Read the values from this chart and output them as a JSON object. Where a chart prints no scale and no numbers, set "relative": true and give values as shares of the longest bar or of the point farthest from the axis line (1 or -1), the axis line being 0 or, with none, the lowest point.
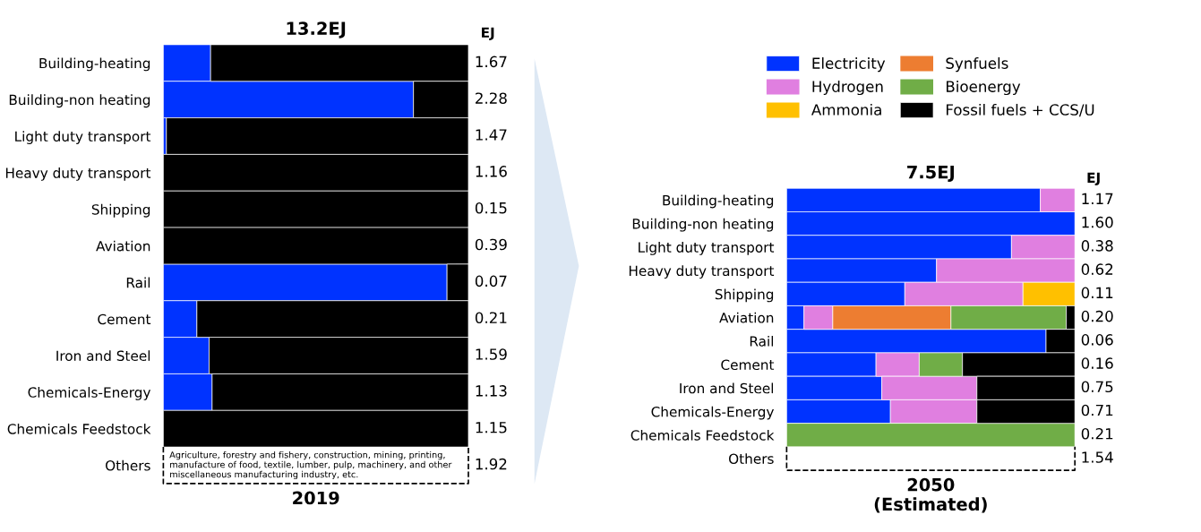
{
  "chart_data": [
    {
      "type": "bar",
      "orientation": "horizontal",
      "stacked": true,
      "relative": true,
      "tick_labels": "y",
      "legend": "right",
      "title": "13.2EJ",
      "xlabel": "2019",
      "y2label": "EJ",
      "categories": [
        "Building-heating",
        "Building-non heating",
        "Light duty transport",
        "Heavy duty transport",
        "Shipping",
        "Aviation",
        "Rail",
        "Cement",
        "Iron and Steel",
        "Chemicals-Energy",
        "Chemicals Feedstock",
        "Others"
      ],
      "annotations": [
        "1.67",
        "2.28",
        "1.47",
        "1.16",
        "0.15",
        "0.39",
        "0.07",
        "0.21",
        "1.59",
        "1.13",
        "1.15",
        "1.92",
        "Agriculture, forestry and fishery, construction, mining, printing, manufacture of food, textile, lumber, pulp, machinery, and other miscellaneous manufacturing industry, etc."
      ],
      "series": [
        {
          "name": "Electricity",
          "color": "#0033ff",
          "values": [
            0.155,
            0.82,
            0.01,
            0,
            0,
            0,
            0.93,
            0.11,
            0.15,
            0.16,
            0,
            0
          ]
        },
        {
          "name": "Hydrogen",
          "color": "#e07fe0",
          "values": [
            0,
            0,
            0,
            0,
            0,
            0,
            0,
            0,
            0,
            0,
            0,
            0
          ]
        },
        {
          "name": "Ammonia",
          "color": "#ffc000",
          "values": [
            0,
            0,
            0,
            0,
            0,
            0,
            0,
            0,
            0,
            0,
            0,
            0
          ]
        },
        {
          "name": "Synfuels",
          "color": "#ed7d31",
          "values": [
            0,
            0,
            0,
            0,
            0,
            0,
            0,
            0,
            0,
            0,
            0,
            0
          ]
        },
        {
          "name": "Bioenergy",
          "color": "#70ad47",
          "values": [
            0,
            0,
            0,
            0,
            0,
            0,
            0,
            0,
            0,
            0,
            0,
            0
          ]
        },
        {
          "name": "Fossil fuels + CCS/U",
          "color": "#000000",
          "values": [
            0.845,
            0.18,
            0.99,
            1,
            1,
            1,
            0.07,
            0.89,
            0.85,
            0.84,
            1,
            0
          ]
        }
      ]
    },
    {
      "type": "bar",
      "orientation": "horizontal",
      "stacked": true,
      "relative": true,
      "tick_labels": "y",
      "title": "7.5EJ",
      "xlabel": "2050\n(Estimated)",
      "y2label": "EJ",
      "categories": [
        "Building-heating",
        "Building-non heating",
        "Light duty transport",
        "Heavy duty transport",
        "Shipping",
        "Aviation",
        "Rail",
        "Cement",
        "Iron and Steel",
        "Chemicals-Energy",
        "Chemicals Feedstock",
        "Others"
      ],
      "annotations": [
        "1.17",
        "1.60",
        "0.38",
        "0.62",
        "0.11",
        "0.20",
        "0.06",
        "0.16",
        "0.75",
        "0.71",
        "0.21",
        "1.54"
      ],
      "series": [
        {
          "color": "#0033ff",
          "values": [
            0.88,
            1,
            0.78,
            0.52,
            0.41,
            0.06,
            0.9,
            0.31,
            0.33,
            0.36,
            0,
            0
          ]
        },
        {
          "color": "#e07fe0",
          "values": [
            0.12,
            0,
            0.22,
            0.48,
            0.41,
            0.1,
            0,
            0.15,
            0.33,
            0.3,
            0,
            0
          ]
        },
        {
          "color": "#ffc000",
          "values": [
            0,
            0,
            0,
            0,
            0.18,
            0,
            0,
            0,
            0,
            0,
            0,
            0
          ]
        },
        {
          "color": "#ed7d31",
          "values": [
            0,
            0,
            0,
            0,
            0,
            0.41,
            0,
            0,
            0,
            0,
            0,
            0
          ]
        },
        {
          "color": "#70ad47",
          "values": [
            0,
            0,
            0,
            0,
            0,
            0.4,
            0,
            0.15,
            0,
            0,
            1,
            0
          ]
        },
        {
          "color": "#000000",
          "values": [
            0,
            0,
            0,
            0,
            0,
            0.03,
            0.1,
            0.39,
            0.34,
            0.34,
            0,
            0
          ]
        }
      ]
    }
  ]
}
